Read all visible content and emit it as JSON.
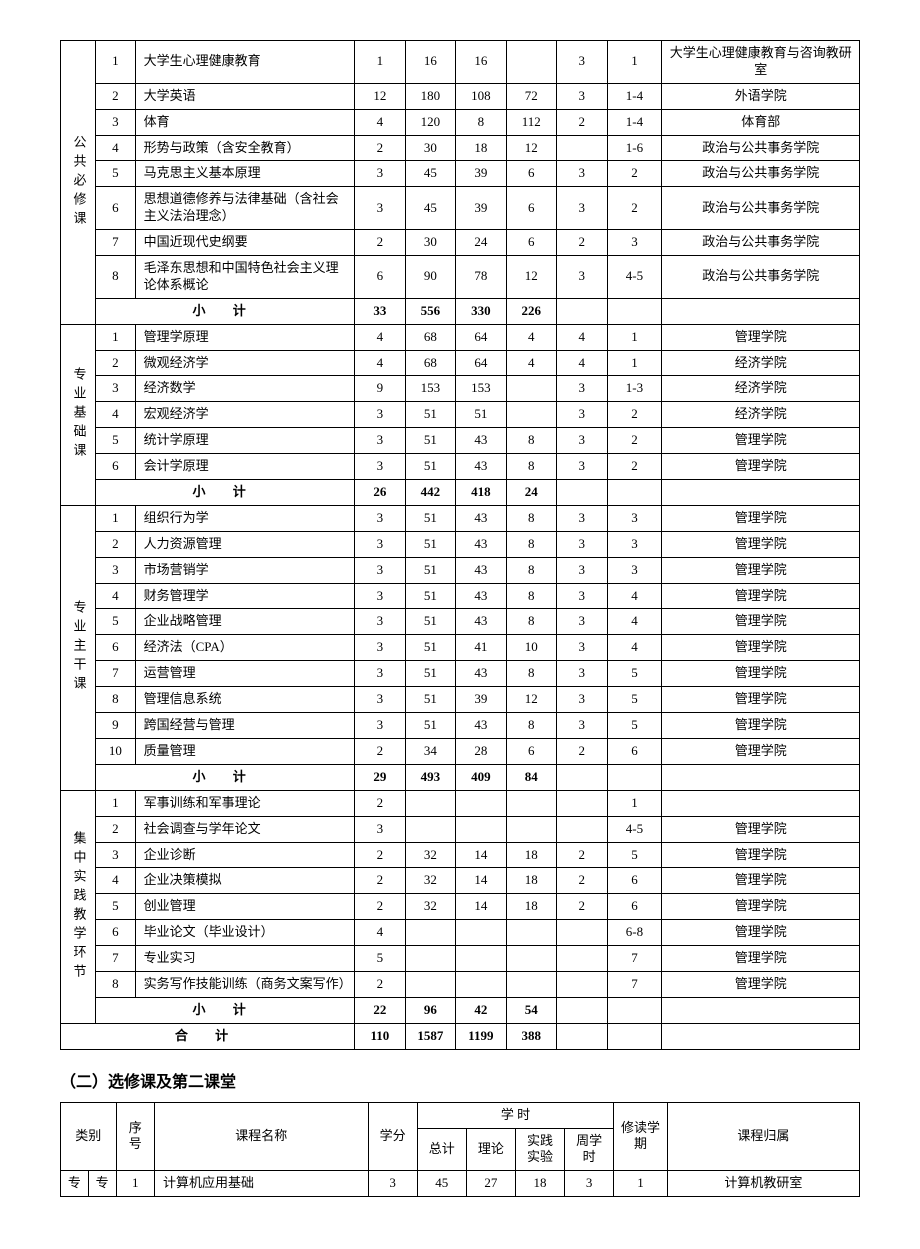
{
  "text_color": "#000000",
  "border_color": "#000000",
  "background_color": "#ffffff",
  "font_family": "SimSun",
  "base_fontsize": 13,
  "section2_title": "（二）选修课及第二课堂",
  "subtotal_label": "小  计",
  "total_label": "合  计",
  "table2_headers": {
    "category": "类别",
    "index": "序号",
    "course_name": "课程名称",
    "credit": "学分",
    "hours_group": "学    时",
    "total": "总计",
    "theory": "理论",
    "practice": "实践实验",
    "weekly": "周学时",
    "semester": "修读学期",
    "dept": "课程归属"
  },
  "groups": [
    {
      "category": "公共必修课",
      "rows": [
        {
          "idx": "1",
          "name": "大学生心理健康教育",
          "credit": "1",
          "total": "16",
          "theory": "16",
          "practice": "",
          "weekly": "3",
          "semester": "1",
          "dept": "大学生心理健康教育与咨询教研室"
        },
        {
          "idx": "2",
          "name": "大学英语",
          "credit": "12",
          "total": "180",
          "theory": "108",
          "practice": "72",
          "weekly": "3",
          "semester": "1-4",
          "dept": "外语学院"
        },
        {
          "idx": "3",
          "name": "体育",
          "credit": "4",
          "total": "120",
          "theory": "8",
          "practice": "112",
          "weekly": "2",
          "semester": "1-4",
          "dept": "体育部"
        },
        {
          "idx": "4",
          "name": "形势与政策（含安全教育）",
          "credit": "2",
          "total": "30",
          "theory": "18",
          "practice": "12",
          "weekly": "",
          "semester": "1-6",
          "dept": "政治与公共事务学院"
        },
        {
          "idx": "5",
          "name": "马克思主义基本原理",
          "credit": "3",
          "total": "45",
          "theory": "39",
          "practice": "6",
          "weekly": "3",
          "semester": "2",
          "dept": "政治与公共事务学院"
        },
        {
          "idx": "6",
          "name": "思想道德修养与法律基础（含社会主义法治理念）",
          "credit": "3",
          "total": "45",
          "theory": "39",
          "practice": "6",
          "weekly": "3",
          "semester": "2",
          "dept": "政治与公共事务学院"
        },
        {
          "idx": "7",
          "name": "中国近现代史纲要",
          "credit": "2",
          "total": "30",
          "theory": "24",
          "practice": "6",
          "weekly": "2",
          "semester": "3",
          "dept": "政治与公共事务学院"
        },
        {
          "idx": "8",
          "name": "毛泽东思想和中国特色社会主义理论体系概论",
          "credit": "6",
          "total": "90",
          "theory": "78",
          "practice": "12",
          "weekly": "3",
          "semester": "4-5",
          "dept": "政治与公共事务学院"
        }
      ],
      "subtotal": {
        "credit": "33",
        "total": "556",
        "theory": "330",
        "practice": "226",
        "weekly": "",
        "semester": "",
        "dept": ""
      }
    },
    {
      "category": "专业基础课",
      "rows": [
        {
          "idx": "1",
          "name": "管理学原理",
          "credit": "4",
          "total": "68",
          "theory": "64",
          "practice": "4",
          "weekly": "4",
          "semester": "1",
          "dept": "管理学院"
        },
        {
          "idx": "2",
          "name": "微观经济学",
          "credit": "4",
          "total": "68",
          "theory": "64",
          "practice": "4",
          "weekly": "4",
          "semester": "1",
          "dept": "经济学院"
        },
        {
          "idx": "3",
          "name": "经济数学",
          "credit": "9",
          "total": "153",
          "theory": "153",
          "practice": "",
          "weekly": "3",
          "semester": "1-3",
          "dept": "经济学院"
        },
        {
          "idx": "4",
          "name": "宏观经济学",
          "credit": "3",
          "total": "51",
          "theory": "51",
          "practice": "",
          "weekly": "3",
          "semester": "2",
          "dept": "经济学院"
        },
        {
          "idx": "5",
          "name": "统计学原理",
          "credit": "3",
          "total": "51",
          "theory": "43",
          "practice": "8",
          "weekly": "3",
          "semester": "2",
          "dept": "管理学院"
        },
        {
          "idx": "6",
          "name": "会计学原理",
          "credit": "3",
          "total": "51",
          "theory": "43",
          "practice": "8",
          "weekly": "3",
          "semester": "2",
          "dept": "管理学院"
        }
      ],
      "subtotal": {
        "credit": "26",
        "total": "442",
        "theory": "418",
        "practice": "24",
        "weekly": "",
        "semester": "",
        "dept": ""
      }
    },
    {
      "category": "专业主干课",
      "rows": [
        {
          "idx": "1",
          "name": "组织行为学",
          "credit": "3",
          "total": "51",
          "theory": "43",
          "practice": "8",
          "weekly": "3",
          "semester": "3",
          "dept": "管理学院"
        },
        {
          "idx": "2",
          "name": "人力资源管理",
          "credit": "3",
          "total": "51",
          "theory": "43",
          "practice": "8",
          "weekly": "3",
          "semester": "3",
          "dept": "管理学院"
        },
        {
          "idx": "3",
          "name": "市场营销学",
          "credit": "3",
          "total": "51",
          "theory": "43",
          "practice": "8",
          "weekly": "3",
          "semester": "3",
          "dept": "管理学院"
        },
        {
          "idx": "4",
          "name": "财务管理学",
          "credit": "3",
          "total": "51",
          "theory": "43",
          "practice": "8",
          "weekly": "3",
          "semester": "4",
          "dept": "管理学院"
        },
        {
          "idx": "5",
          "name": "企业战略管理",
          "credit": "3",
          "total": "51",
          "theory": "43",
          "practice": "8",
          "weekly": "3",
          "semester": "4",
          "dept": "管理学院"
        },
        {
          "idx": "6",
          "name": "经济法（CPA）",
          "credit": "3",
          "total": "51",
          "theory": "41",
          "practice": "10",
          "weekly": "3",
          "semester": "4",
          "dept": "管理学院"
        },
        {
          "idx": "7",
          "name": "运营管理",
          "credit": "3",
          "total": "51",
          "theory": "43",
          "practice": "8",
          "weekly": "3",
          "semester": "5",
          "dept": "管理学院"
        },
        {
          "idx": "8",
          "name": "管理信息系统",
          "credit": "3",
          "total": "51",
          "theory": "39",
          "practice": "12",
          "weekly": "3",
          "semester": "5",
          "dept": "管理学院"
        },
        {
          "idx": "9",
          "name": "跨国经营与管理",
          "credit": "3",
          "total": "51",
          "theory": "43",
          "practice": "8",
          "weekly": "3",
          "semester": "5",
          "dept": "管理学院"
        },
        {
          "idx": "10",
          "name": "质量管理",
          "credit": "2",
          "total": "34",
          "theory": "28",
          "practice": "6",
          "weekly": "2",
          "semester": "6",
          "dept": "管理学院"
        }
      ],
      "subtotal": {
        "credit": "29",
        "total": "493",
        "theory": "409",
        "practice": "84",
        "weekly": "",
        "semester": "",
        "dept": ""
      }
    },
    {
      "category": "集中实践教学环节",
      "rows": [
        {
          "idx": "1",
          "name": "军事训练和军事理论",
          "credit": "2",
          "total": "",
          "theory": "",
          "practice": "",
          "weekly": "",
          "semester": "1",
          "dept": ""
        },
        {
          "idx": "2",
          "name": "社会调查与学年论文",
          "credit": "3",
          "total": "",
          "theory": "",
          "practice": "",
          "weekly": "",
          "semester": "4-5",
          "dept": "管理学院"
        },
        {
          "idx": "3",
          "name": "企业诊断",
          "credit": "2",
          "total": "32",
          "theory": "14",
          "practice": "18",
          "weekly": "2",
          "semester": "5",
          "dept": "管理学院"
        },
        {
          "idx": "4",
          "name": "企业决策模拟",
          "credit": "2",
          "total": "32",
          "theory": "14",
          "practice": "18",
          "weekly": "2",
          "semester": "6",
          "dept": "管理学院"
        },
        {
          "idx": "5",
          "name": "创业管理",
          "credit": "2",
          "total": "32",
          "theory": "14",
          "practice": "18",
          "weekly": "2",
          "semester": "6",
          "dept": "管理学院"
        },
        {
          "idx": "6",
          "name": "毕业论文（毕业设计）",
          "credit": "4",
          "total": "",
          "theory": "",
          "practice": "",
          "weekly": "",
          "semester": "6-8",
          "dept": "管理学院"
        },
        {
          "idx": "7",
          "name": "专业实习",
          "credit": "5",
          "total": "",
          "theory": "",
          "practice": "",
          "weekly": "",
          "semester": "7",
          "dept": "管理学院"
        },
        {
          "idx": "8",
          "name": "实务写作技能训练（商务文案写作）",
          "credit": "2",
          "total": "",
          "theory": "",
          "practice": "",
          "weekly": "",
          "semester": "7",
          "dept": "管理学院"
        }
      ],
      "subtotal": {
        "credit": "22",
        "total": "96",
        "theory": "42",
        "practice": "54",
        "weekly": "",
        "semester": "",
        "dept": ""
      }
    }
  ],
  "grand_total": {
    "credit": "110",
    "total": "1587",
    "theory": "1199",
    "practice": "388",
    "weekly": "",
    "semester": "",
    "dept": ""
  },
  "table2": {
    "cat1": "专",
    "cat2": "专",
    "rows": [
      {
        "idx": "1",
        "name": "计算机应用基础",
        "credit": "3",
        "total": "45",
        "theory": "27",
        "practice": "18",
        "weekly": "3",
        "semester": "1",
        "dept": "计算机教研室"
      }
    ]
  }
}
